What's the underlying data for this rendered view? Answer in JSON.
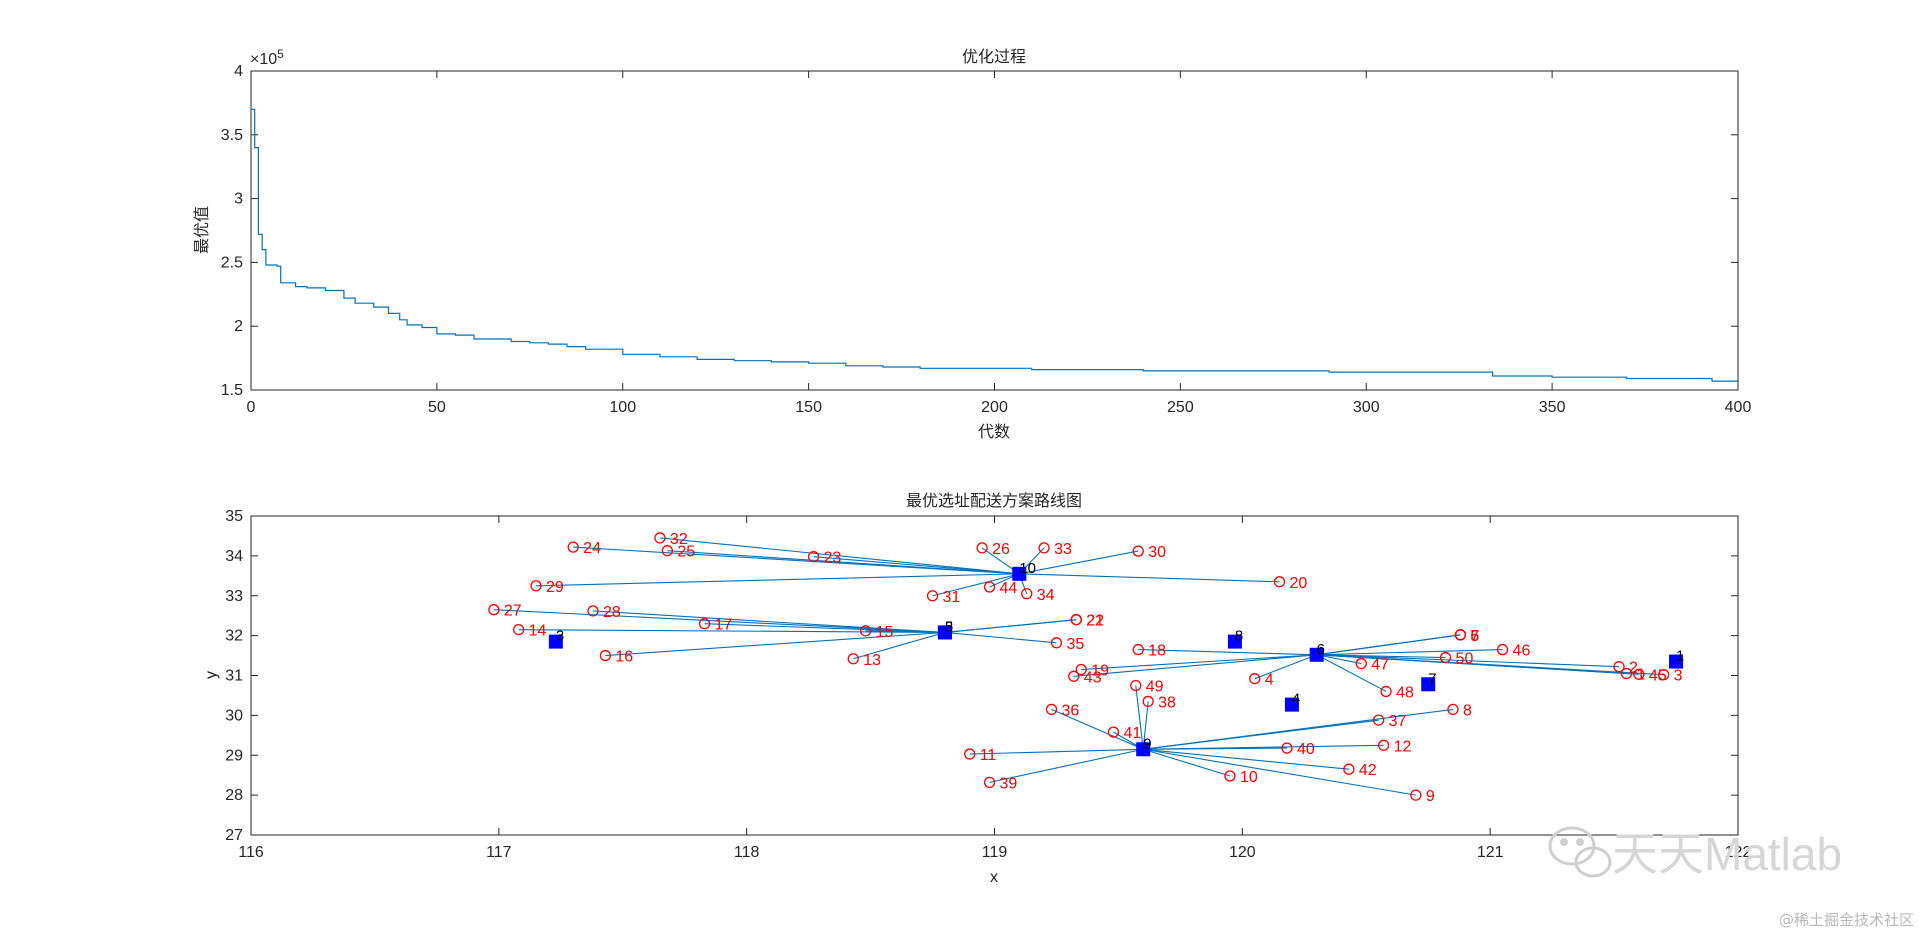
{
  "chart_data": [
    {
      "type": "line",
      "title": "优化过程",
      "xlabel": "代数",
      "ylabel": "最优值",
      "xlim": [
        0,
        400
      ],
      "ylim": [
        1.5,
        4
      ],
      "xticks": [
        0,
        50,
        100,
        150,
        200,
        250,
        300,
        350,
        400
      ],
      "yticks": [
        1.5,
        2,
        2.5,
        3,
        3.5,
        4
      ],
      "xtick_labels": [
        "0",
        "50",
        "100",
        "150",
        "200",
        "250",
        "300",
        "350",
        "400"
      ],
      "ytick_labels": [
        "1.5",
        "2",
        "2.5",
        "3",
        "3.5",
        "4"
      ],
      "exponent_label": "×10",
      "exponent_power": "5",
      "line_color": "#0072bd",
      "series": [
        {
          "name": "best",
          "x": [
            0,
            1,
            2,
            3,
            4,
            7,
            8,
            12,
            15,
            20,
            25,
            28,
            33,
            37,
            40,
            42,
            46,
            50,
            55,
            60,
            65,
            70,
            75,
            80,
            85,
            90,
            100,
            110,
            120,
            130,
            140,
            150,
            160,
            170,
            180,
            190,
            200,
            210,
            220,
            230,
            240,
            250,
            260,
            270,
            280,
            290,
            300,
            310,
            320,
            333,
            334,
            350,
            360,
            370,
            380,
            390,
            393,
            400
          ],
          "y": [
            3.7,
            3.4,
            2.72,
            2.6,
            2.48,
            2.47,
            2.34,
            2.31,
            2.3,
            2.28,
            2.22,
            2.18,
            2.15,
            2.1,
            2.05,
            2.01,
            1.99,
            1.94,
            1.93,
            1.9,
            1.9,
            1.88,
            1.87,
            1.86,
            1.84,
            1.82,
            1.78,
            1.76,
            1.74,
            1.73,
            1.72,
            1.71,
            1.69,
            1.68,
            1.67,
            1.67,
            1.67,
            1.66,
            1.66,
            1.66,
            1.65,
            1.65,
            1.65,
            1.65,
            1.65,
            1.64,
            1.64,
            1.64,
            1.64,
            1.64,
            1.61,
            1.6,
            1.6,
            1.59,
            1.59,
            1.59,
            1.57,
            1.57
          ]
        }
      ]
    },
    {
      "type": "scatter",
      "title": "最优选址配送方案路线图",
      "xlabel": "x",
      "ylabel": "y",
      "xlim": [
        116,
        122
      ],
      "ylim": [
        27,
        35
      ],
      "xticks": [
        116,
        117,
        118,
        119,
        120,
        121,
        122
      ],
      "yticks": [
        27,
        28,
        29,
        30,
        31,
        32,
        33,
        34,
        35
      ],
      "xtick_labels": [
        "116",
        "117",
        "118",
        "119",
        "120",
        "121",
        "122"
      ],
      "ytick_labels": [
        "27",
        "28",
        "29",
        "30",
        "31",
        "32",
        "33",
        "34",
        "35"
      ],
      "center_color": "#0000ff",
      "customer_color": "#ff0000",
      "route_color": "#0072bd",
      "centers": [
        {
          "id": "1",
          "x": 121.75,
          "y": 31.35
        },
        {
          "id": "2",
          "x": 118.8,
          "y": 32.08
        },
        {
          "id": "3",
          "x": 117.23,
          "y": 31.85
        },
        {
          "id": "4",
          "x": 120.2,
          "y": 30.27
        },
        {
          "id": "5",
          "x": 118.8,
          "y": 32.08
        },
        {
          "id": "6",
          "x": 120.3,
          "y": 31.52
        },
        {
          "id": "7",
          "x": 120.75,
          "y": 30.78
        },
        {
          "id": "8",
          "x": 119.97,
          "y": 31.85
        },
        {
          "id": "9",
          "x": 119.6,
          "y": 29.15
        },
        {
          "id": "10",
          "x": 119.1,
          "y": 33.55
        }
      ],
      "customers": [
        {
          "id": "1",
          "x": 121.55,
          "y": 31.05,
          "center": "6"
        },
        {
          "id": "2",
          "x": 121.52,
          "y": 31.22,
          "center": "6"
        },
        {
          "id": "3",
          "x": 121.7,
          "y": 31.02,
          "center": "6"
        },
        {
          "id": "4",
          "x": 120.05,
          "y": 30.92,
          "center": "6"
        },
        {
          "id": "5",
          "x": 120.88,
          "y": 32.02,
          "center": "6"
        },
        {
          "id": "6",
          "x": 120.88,
          "y": 32.02,
          "center": "6"
        },
        {
          "id": "7",
          "x": 120.88,
          "y": 32.02,
          "center": "6"
        },
        {
          "id": "8",
          "x": 120.85,
          "y": 30.15,
          "center": "9"
        },
        {
          "id": "9",
          "x": 120.7,
          "y": 28.0,
          "center": "9"
        },
        {
          "id": "10",
          "x": 119.95,
          "y": 28.48,
          "center": "9"
        },
        {
          "id": "11",
          "x": 118.9,
          "y": 29.03,
          "center": "9"
        },
        {
          "id": "12",
          "x": 120.57,
          "y": 29.25,
          "center": "9"
        },
        {
          "id": "13",
          "x": 118.43,
          "y": 31.42,
          "center": "2"
        },
        {
          "id": "14",
          "x": 117.08,
          "y": 32.15,
          "center": "2"
        },
        {
          "id": "15",
          "x": 118.48,
          "y": 32.12,
          "center": "2"
        },
        {
          "id": "16",
          "x": 117.43,
          "y": 31.5,
          "center": "2"
        },
        {
          "id": "17",
          "x": 117.83,
          "y": 32.3,
          "center": "2"
        },
        {
          "id": "18",
          "x": 119.58,
          "y": 31.65,
          "center": "6"
        },
        {
          "id": "19",
          "x": 119.35,
          "y": 31.15,
          "center": "6"
        },
        {
          "id": "20",
          "x": 120.15,
          "y": 33.35,
          "center": "10"
        },
        {
          "id": "21",
          "x": 119.33,
          "y": 32.4,
          "center": "2"
        },
        {
          "id": "22",
          "x": 119.33,
          "y": 32.4,
          "center": "2"
        },
        {
          "id": "23",
          "x": 118.27,
          "y": 33.98,
          "center": "10"
        },
        {
          "id": "24",
          "x": 117.3,
          "y": 34.22,
          "center": "10"
        },
        {
          "id": "25",
          "x": 117.68,
          "y": 34.13,
          "center": "10"
        },
        {
          "id": "26",
          "x": 118.95,
          "y": 34.2,
          "center": "10"
        },
        {
          "id": "27",
          "x": 116.98,
          "y": 32.65,
          "center": "2"
        },
        {
          "id": "28",
          "x": 117.38,
          "y": 32.62,
          "center": "2"
        },
        {
          "id": "29",
          "x": 117.15,
          "y": 33.25,
          "center": "10"
        },
        {
          "id": "30",
          "x": 119.58,
          "y": 34.12,
          "center": "10"
        },
        {
          "id": "31",
          "x": 118.75,
          "y": 33.0,
          "center": "10"
        },
        {
          "id": "32",
          "x": 117.65,
          "y": 34.45,
          "center": "10"
        },
        {
          "id": "33",
          "x": 119.2,
          "y": 34.2,
          "center": "10"
        },
        {
          "id": "34",
          "x": 119.13,
          "y": 33.05,
          "center": "10"
        },
        {
          "id": "35",
          "x": 119.25,
          "y": 31.82,
          "center": "2"
        },
        {
          "id": "36",
          "x": 119.23,
          "y": 30.15,
          "center": "9"
        },
        {
          "id": "37",
          "x": 120.55,
          "y": 29.88,
          "center": "9"
        },
        {
          "id": "38",
          "x": 119.62,
          "y": 30.35,
          "center": "9"
        },
        {
          "id": "39",
          "x": 118.98,
          "y": 28.32,
          "center": "9"
        },
        {
          "id": "40",
          "x": 120.18,
          "y": 29.18,
          "center": "9"
        },
        {
          "id": "41",
          "x": 119.48,
          "y": 29.58,
          "center": "9"
        },
        {
          "id": "42",
          "x": 120.43,
          "y": 28.65,
          "center": "9"
        },
        {
          "id": "43",
          "x": 119.32,
          "y": 30.98,
          "center": "6"
        },
        {
          "id": "44",
          "x": 118.98,
          "y": 33.22,
          "center": "10"
        },
        {
          "id": "45",
          "x": 121.6,
          "y": 31.03,
          "center": "6"
        },
        {
          "id": "46",
          "x": 121.05,
          "y": 31.65,
          "center": "6"
        },
        {
          "id": "47",
          "x": 120.48,
          "y": 31.3,
          "center": "6"
        },
        {
          "id": "48",
          "x": 120.58,
          "y": 30.6,
          "center": "6"
        },
        {
          "id": "49",
          "x": 119.57,
          "y": 30.75,
          "center": "9"
        },
        {
          "id": "50",
          "x": 120.82,
          "y": 31.45,
          "center": "6"
        }
      ]
    }
  ],
  "watermark": {
    "brand": "天天Matlab",
    "footer": "@稀土掘金技术社区"
  }
}
